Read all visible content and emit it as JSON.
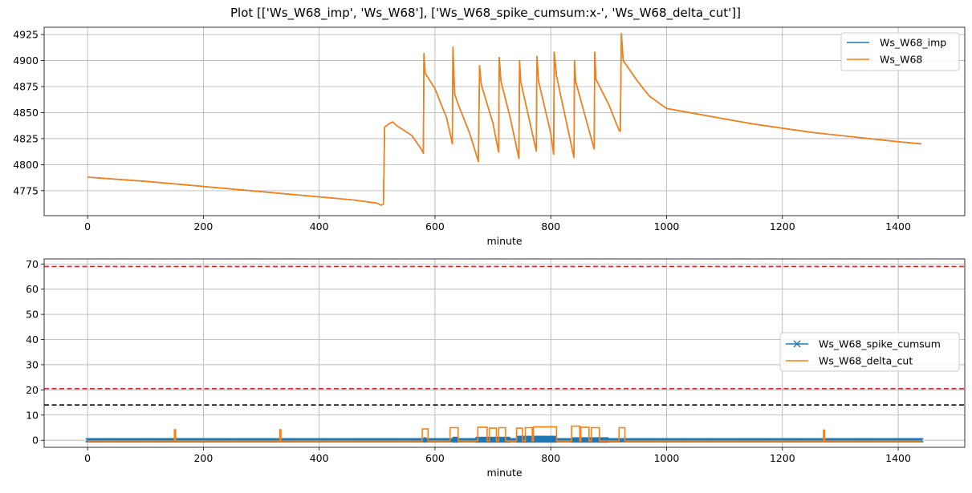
{
  "page": {
    "title": "Plot [['Ws_W68_imp', 'Ws_W68'], ['Ws_W68_spike_cumsum:x-', 'Ws_W68_delta_cut']]"
  },
  "colors": {
    "blue": "#1f77b4",
    "orange": "#ff7f0e",
    "red_dashed": "#d62728",
    "black_dashed": "#000000",
    "grid": "#b0b0b0"
  },
  "chart_data": [
    {
      "type": "line",
      "title": "",
      "xlabel": "minute",
      "ylabel": "",
      "xlim": [
        -75,
        1515
      ],
      "ylim": [
        4751,
        4932
      ],
      "xticks": [
        0,
        200,
        400,
        600,
        800,
        1000,
        1200,
        1400
      ],
      "yticks": [
        4775,
        4800,
        4825,
        4850,
        4875,
        4900,
        4925
      ],
      "grid": true,
      "legend_position": "top-right",
      "series": [
        {
          "name": "Ws_W68_imp",
          "color": "#1f77b4",
          "points": [
            [
              0,
              4788
            ],
            [
              100,
              4784
            ],
            [
              200,
              4779
            ],
            [
              300,
              4774
            ],
            [
              400,
              4769
            ],
            [
              460,
              4766
            ],
            [
              500,
              4763
            ],
            [
              507,
              4761
            ],
            [
              511,
              4762
            ],
            [
              513,
              4836
            ],
            [
              520,
              4839
            ],
            [
              527,
              4841
            ],
            [
              535,
              4837
            ],
            [
              560,
              4828
            ],
            [
              575,
              4816
            ],
            [
              580,
              4811
            ],
            [
              581,
              4907
            ],
            [
              583,
              4888
            ],
            [
              600,
              4873
            ],
            [
              620,
              4845
            ],
            [
              630,
              4820
            ],
            [
              631,
              4913
            ],
            [
              634,
              4868
            ],
            [
              640,
              4858
            ],
            [
              660,
              4830
            ],
            [
              675,
              4803
            ],
            [
              677,
              4895
            ],
            [
              680,
              4877
            ],
            [
              700,
              4840
            ],
            [
              710,
              4812
            ],
            [
              711,
              4903
            ],
            [
              714,
              4880
            ],
            [
              730,
              4845
            ],
            [
              745,
              4806
            ],
            [
              746,
              4900
            ],
            [
              748,
              4880
            ],
            [
              775,
              4813
            ],
            [
              776,
              4904
            ],
            [
              779,
              4880
            ],
            [
              800,
              4830
            ],
            [
              805,
              4810
            ],
            [
              806,
              4908
            ],
            [
              810,
              4885
            ],
            [
              835,
              4820
            ],
            [
              840,
              4807
            ],
            [
              841,
              4900
            ],
            [
              843,
              4880
            ],
            [
              875,
              4815
            ],
            [
              876,
              4908
            ],
            [
              878,
              4882
            ],
            [
              900,
              4858
            ],
            [
              918,
              4833
            ],
            [
              920,
              4832
            ],
            [
              922,
              4926
            ],
            [
              925,
              4900
            ],
            [
              950,
              4880
            ],
            [
              970,
              4866
            ],
            [
              1000,
              4854
            ],
            [
              1050,
              4849
            ],
            [
              1100,
              4844
            ],
            [
              1150,
              4839
            ],
            [
              1200,
              4835
            ],
            [
              1250,
              4831
            ],
            [
              1300,
              4828
            ],
            [
              1350,
              4825
            ],
            [
              1400,
              4822
            ],
            [
              1440,
              4820
            ]
          ]
        },
        {
          "name": "Ws_W68",
          "color": "#ff7f0e",
          "points": [
            [
              0,
              4788
            ],
            [
              100,
              4784
            ],
            [
              200,
              4779
            ],
            [
              300,
              4774
            ],
            [
              400,
              4769
            ],
            [
              460,
              4766
            ],
            [
              500,
              4763
            ],
            [
              507,
              4761
            ],
            [
              511,
              4762
            ],
            [
              513,
              4836
            ],
            [
              520,
              4839
            ],
            [
              527,
              4841
            ],
            [
              535,
              4837
            ],
            [
              560,
              4828
            ],
            [
              575,
              4816
            ],
            [
              580,
              4811
            ],
            [
              581,
              4907
            ],
            [
              583,
              4888
            ],
            [
              600,
              4873
            ],
            [
              620,
              4845
            ],
            [
              630,
              4820
            ],
            [
              631,
              4913
            ],
            [
              634,
              4868
            ],
            [
              640,
              4858
            ],
            [
              660,
              4830
            ],
            [
              675,
              4803
            ],
            [
              677,
              4895
            ],
            [
              680,
              4877
            ],
            [
              700,
              4840
            ],
            [
              710,
              4812
            ],
            [
              711,
              4903
            ],
            [
              714,
              4880
            ],
            [
              730,
              4845
            ],
            [
              745,
              4806
            ],
            [
              746,
              4900
            ],
            [
              748,
              4880
            ],
            [
              775,
              4813
            ],
            [
              776,
              4904
            ],
            [
              779,
              4880
            ],
            [
              800,
              4830
            ],
            [
              805,
              4810
            ],
            [
              806,
              4908
            ],
            [
              810,
              4885
            ],
            [
              835,
              4820
            ],
            [
              840,
              4807
            ],
            [
              841,
              4900
            ],
            [
              843,
              4880
            ],
            [
              875,
              4815
            ],
            [
              876,
              4908
            ],
            [
              878,
              4882
            ],
            [
              900,
              4858
            ],
            [
              918,
              4833
            ],
            [
              920,
              4832
            ],
            [
              922,
              4926
            ],
            [
              925,
              4900
            ],
            [
              950,
              4880
            ],
            [
              970,
              4866
            ],
            [
              1000,
              4854
            ],
            [
              1050,
              4849
            ],
            [
              1100,
              4844
            ],
            [
              1150,
              4839
            ],
            [
              1200,
              4835
            ],
            [
              1250,
              4831
            ],
            [
              1300,
              4828
            ],
            [
              1350,
              4825
            ],
            [
              1400,
              4822
            ],
            [
              1440,
              4820
            ]
          ]
        }
      ]
    },
    {
      "type": "line",
      "title": "",
      "xlabel": "minute",
      "ylabel": "",
      "xlim": [
        -75,
        1515
      ],
      "ylim": [
        -2.8,
        72
      ],
      "xticks": [
        0,
        200,
        400,
        600,
        800,
        1000,
        1200,
        1400
      ],
      "yticks": [
        0,
        10,
        20,
        30,
        40,
        50,
        60,
        70
      ],
      "grid": true,
      "legend_position": "center-right",
      "hlines": [
        {
          "y": 69,
          "color": "#d62728",
          "style": "dashed"
        },
        {
          "y": 20.5,
          "color": "#d62728",
          "style": "dashed"
        },
        {
          "y": 14,
          "color": "#000000",
          "style": "dashed"
        }
      ],
      "series": [
        {
          "name": "Ws_W68_spike_cumsum",
          "color": "#1f77b4",
          "marker": "x",
          "x_range": [
            0,
            1440
          ],
          "value": 0,
          "dense_segments": [
            [
              580,
              585,
              1.2
            ],
            [
              630,
              640,
              1.4
            ],
            [
              670,
              730,
              1.4
            ],
            [
              740,
              810,
              1.8
            ],
            [
              835,
              900,
              1.2
            ]
          ]
        },
        {
          "name": "Ws_W68_delta_cut",
          "color": "#ff7f0e",
          "baseline": -0.3,
          "pulses": [
            [
              150,
              152,
              4.2
            ],
            [
              332,
              334,
              4.2
            ],
            [
              578,
              588,
              4.5
            ],
            [
              626,
              640,
              5.0
            ],
            [
              674,
              690,
              5.2
            ],
            [
              694,
              706,
              4.8
            ],
            [
              710,
              722,
              5.0
            ],
            [
              741,
              751,
              4.8
            ],
            [
              756,
              768,
              5.0
            ],
            [
              770,
              810,
              5.3
            ],
            [
              836,
              850,
              5.6
            ],
            [
              852,
              866,
              5.2
            ],
            [
              870,
              884,
              5.0
            ],
            [
              918,
              928,
              5.0
            ],
            [
              1271,
              1273,
              4.0
            ]
          ]
        }
      ]
    }
  ]
}
